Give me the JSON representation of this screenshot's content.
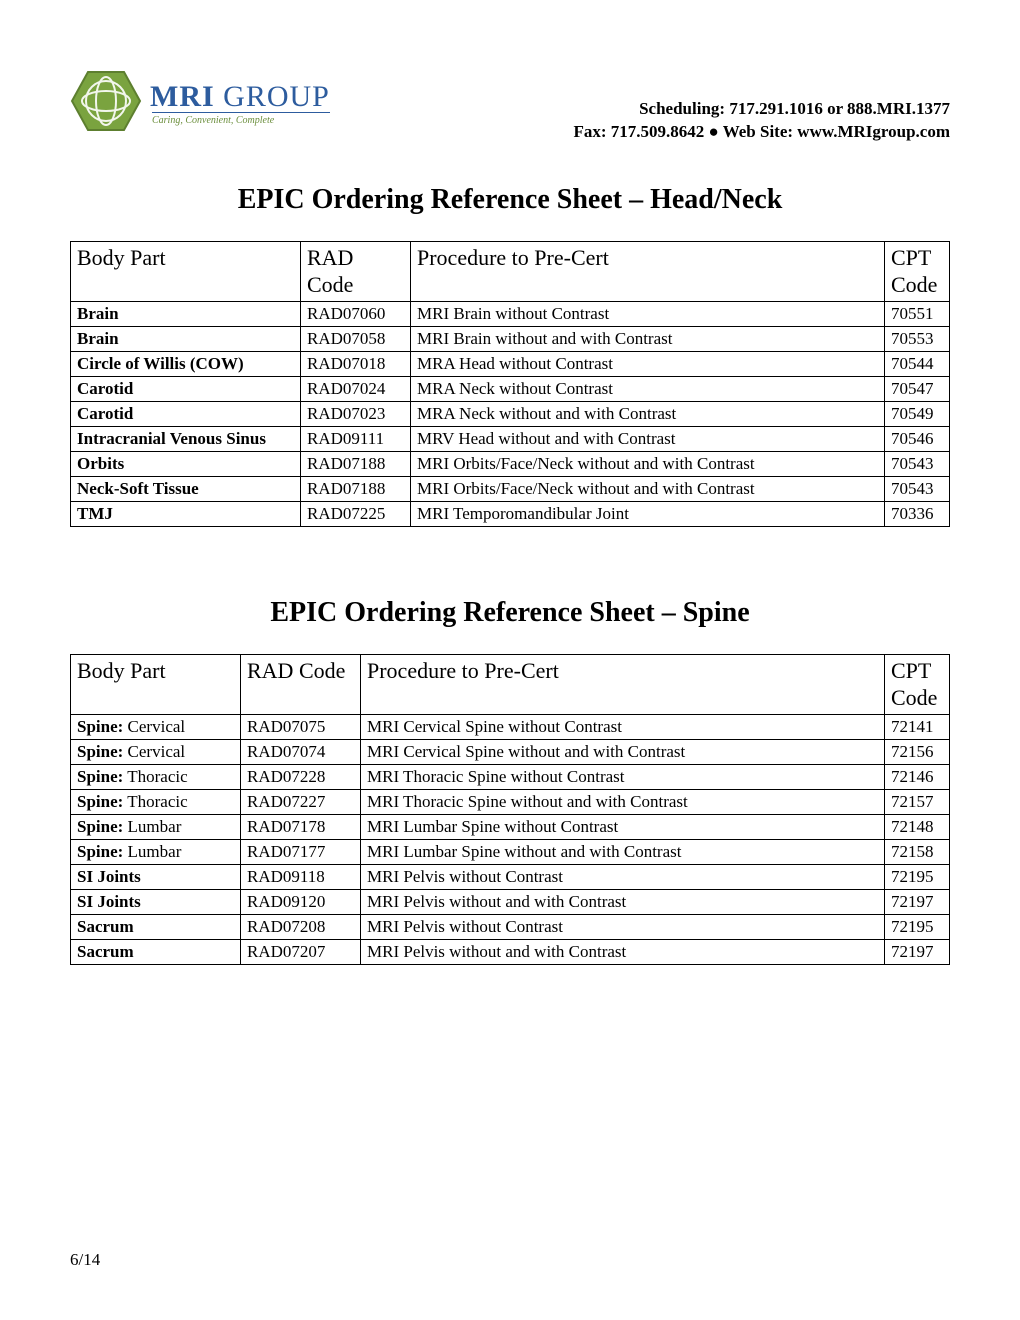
{
  "header": {
    "logo_main_bold": "MRI",
    "logo_main_light": " GROUP",
    "logo_tagline": "Caring, Convenient, Complete",
    "contact_line1": "Scheduling: 717.291.1016 or 888.MRI.1377",
    "contact_line2": "Fax: 717.509.8642 ● Web Site: www.MRIgroup.com"
  },
  "section1": {
    "title": "EPIC Ordering Reference Sheet – Head/Neck",
    "columns": [
      "Body Part",
      "RAD Code",
      "Procedure to Pre-Cert",
      "CPT Code"
    ],
    "rows": [
      {
        "body_bold": "Brain",
        "body_rest": "",
        "rad": "RAD07060",
        "proc": "MRI Brain without Contrast",
        "cpt": "70551"
      },
      {
        "body_bold": "Brain",
        "body_rest": "",
        "rad": "RAD07058",
        "proc": "MRI Brain without and with Contrast",
        "cpt": "70553"
      },
      {
        "body_bold": "Circle of Willis (COW)",
        "body_rest": "",
        "rad": "RAD07018",
        "proc": "MRA Head without Contrast",
        "cpt": "70544"
      },
      {
        "body_bold": "Carotid",
        "body_rest": "",
        "rad": "RAD07024",
        "proc": "MRA Neck without Contrast",
        "cpt": "70547"
      },
      {
        "body_bold": "Carotid",
        "body_rest": "",
        "rad": "RAD07023",
        "proc": "MRA Neck without and with Contrast",
        "cpt": "70549"
      },
      {
        "body_bold": "Intracranial Venous Sinus",
        "body_rest": "",
        "rad": "RAD09111",
        "proc": "MRV Head without and with Contrast",
        "cpt": "70546"
      },
      {
        "body_bold": "Orbits",
        "body_rest": "",
        "rad": "RAD07188",
        "proc": "MRI Orbits/Face/Neck without and with Contrast",
        "cpt": "70543"
      },
      {
        "body_bold": "Neck-Soft Tissue",
        "body_rest": "",
        "rad": "RAD07188",
        "proc": "MRI Orbits/Face/Neck without and with Contrast",
        "cpt": "70543"
      },
      {
        "body_bold": "TMJ",
        "body_rest": "",
        "rad": "RAD07225",
        "proc": "MRI Temporomandibular Joint",
        "cpt": "70336"
      }
    ]
  },
  "section2": {
    "title": "EPIC Ordering Reference Sheet – Spine",
    "columns": [
      "Body Part",
      "RAD Code",
      "Procedure to Pre-Cert",
      "CPT Code"
    ],
    "rows": [
      {
        "body_bold": "Spine:",
        "body_rest": " Cervical",
        "rad": "RAD07075",
        "proc": "MRI Cervical Spine without Contrast",
        "cpt": "72141"
      },
      {
        "body_bold": "Spine:",
        "body_rest": " Cervical",
        "rad": "RAD07074",
        "proc": "MRI Cervical Spine without and with Contrast",
        "cpt": "72156"
      },
      {
        "body_bold": "Spine:",
        "body_rest": " Thoracic",
        "rad": "RAD07228",
        "proc": "MRI Thoracic Spine without Contrast",
        "cpt": "72146"
      },
      {
        "body_bold": "Spine:",
        "body_rest": " Thoracic",
        "rad": "RAD07227",
        "proc": "MRI Thoracic Spine without and with Contrast",
        "cpt": "72157"
      },
      {
        "body_bold": "Spine:",
        "body_rest": " Lumbar",
        "rad": "RAD07178",
        "proc": "MRI Lumbar Spine without Contrast",
        "cpt": "72148"
      },
      {
        "body_bold": "Spine:",
        "body_rest": " Lumbar",
        "rad": "RAD07177",
        "proc": "MRI Lumbar Spine without and with Contrast",
        "cpt": "72158"
      },
      {
        "body_bold": "SI Joints",
        "body_rest": "",
        "rad": "RAD09118",
        "proc": "MRI Pelvis without Contrast",
        "cpt": "72195"
      },
      {
        "body_bold": "SI Joints",
        "body_rest": "",
        "rad": "RAD09120",
        "proc": "MRI Pelvis without and with Contrast",
        "cpt": "72197"
      },
      {
        "body_bold": "Sacrum",
        "body_rest": "",
        "rad": "RAD07208",
        "proc": "MRI Pelvis without Contrast",
        "cpt": "72195"
      },
      {
        "body_bold": "Sacrum",
        "body_rest": "",
        "rad": "RAD07207",
        "proc": "MRI Pelvis without and with Contrast",
        "cpt": "72197"
      }
    ]
  },
  "footer": {
    "page": "6/14"
  },
  "style": {
    "logo_color": "#2d5c9e",
    "logo_accent": "#6d9a3a",
    "border_color": "#000000",
    "body_font_size": 17,
    "header_font_size": 22,
    "title_font_size": 28
  }
}
